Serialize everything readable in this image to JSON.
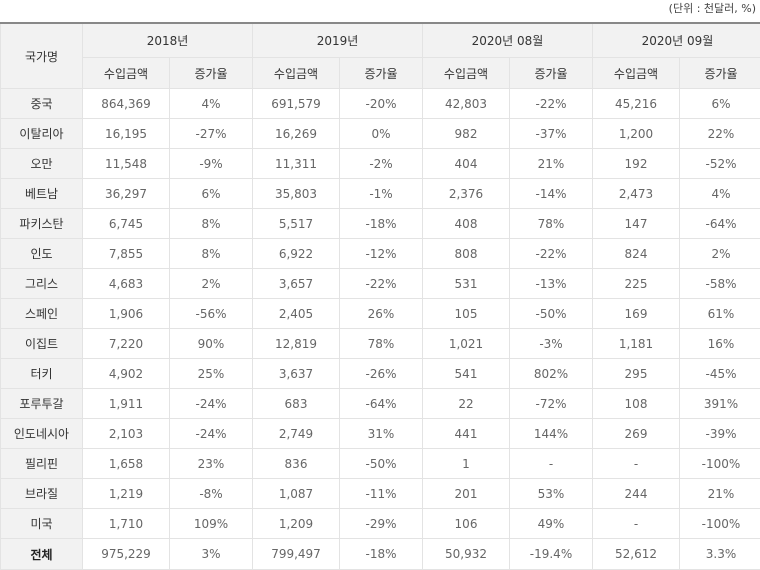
{
  "unit_note": "(단위 : 천달러, %)",
  "header": {
    "country_label": "국가명",
    "periods": [
      "2018년",
      "2019년",
      "2020년 08월",
      "2020년 09월"
    ],
    "amount_label": "수입금액",
    "rate_label": "증가율"
  },
  "rows": [
    {
      "country": "중국",
      "v": [
        "864,369",
        "4%",
        "691,579",
        "-20%",
        "42,803",
        "-22%",
        "45,216",
        "6%"
      ]
    },
    {
      "country": "이탈리아",
      "v": [
        "16,195",
        "-27%",
        "16,269",
        "0%",
        "982",
        "-37%",
        "1,200",
        "22%"
      ]
    },
    {
      "country": "오만",
      "v": [
        "11,548",
        "-9%",
        "11,311",
        "-2%",
        "404",
        "21%",
        "192",
        "-52%"
      ]
    },
    {
      "country": "베트남",
      "v": [
        "36,297",
        "6%",
        "35,803",
        "-1%",
        "2,376",
        "-14%",
        "2,473",
        "4%"
      ]
    },
    {
      "country": "파키스탄",
      "v": [
        "6,745",
        "8%",
        "5,517",
        "-18%",
        "408",
        "78%",
        "147",
        "-64%"
      ]
    },
    {
      "country": "인도",
      "v": [
        "7,855",
        "8%",
        "6,922",
        "-12%",
        "808",
        "-22%",
        "824",
        "2%"
      ]
    },
    {
      "country": "그리스",
      "v": [
        "4,683",
        "2%",
        "3,657",
        "-22%",
        "531",
        "-13%",
        "225",
        "-58%"
      ]
    },
    {
      "country": "스페인",
      "v": [
        "1,906",
        "-56%",
        "2,405",
        "26%",
        "105",
        "-50%",
        "169",
        "61%"
      ]
    },
    {
      "country": "이집트",
      "v": [
        "7,220",
        "90%",
        "12,819",
        "78%",
        "1,021",
        "-3%",
        "1,181",
        "16%"
      ]
    },
    {
      "country": "터키",
      "v": [
        "4,902",
        "25%",
        "3,637",
        "-26%",
        "541",
        "802%",
        "295",
        "-45%"
      ]
    },
    {
      "country": "포루투갈",
      "v": [
        "1,911",
        "-24%",
        "683",
        "-64%",
        "22",
        "-72%",
        "108",
        "391%"
      ]
    },
    {
      "country": "인도네시아",
      "v": [
        "2,103",
        "-24%",
        "2,749",
        "31%",
        "441",
        "144%",
        "269",
        "-39%"
      ]
    },
    {
      "country": "필리핀",
      "v": [
        "1,658",
        "23%",
        "836",
        "-50%",
        "1",
        "-",
        "-",
        "-100%"
      ]
    },
    {
      "country": "브라질",
      "v": [
        "1,219",
        "-8%",
        "1,087",
        "-11%",
        "201",
        "53%",
        "244",
        "21%"
      ]
    },
    {
      "country": "미국",
      "v": [
        "1,710",
        "109%",
        "1,209",
        "-29%",
        "106",
        "49%",
        "-",
        "-100%"
      ]
    }
  ],
  "total": {
    "country": "전체",
    "v": [
      "975,229",
      "3%",
      "799,497",
      "-18%",
      "50,932",
      "-19.4%",
      "52,612",
      "3.3%"
    ]
  }
}
